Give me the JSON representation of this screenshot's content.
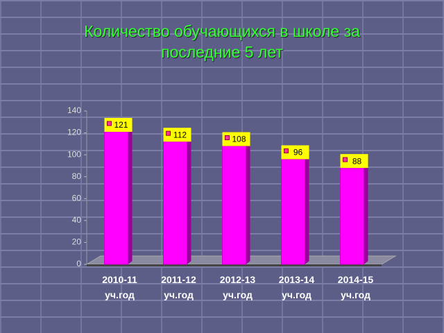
{
  "chart_data": {
    "type": "bar",
    "title": "Количество обучающихся в школе за последние 5 лет",
    "categories": [
      "2010-11 уч.год",
      "2011-12 уч.год",
      "2012-13 уч.год",
      "2013-14 уч.год",
      "2014-15 уч.год"
    ],
    "values": [
      121,
      112,
      108,
      96,
      88
    ],
    "color": "#ff00ff",
    "label_color": "#ffff00",
    "ylim": [
      0,
      140
    ],
    "yticks": [
      0,
      20,
      40,
      60,
      80,
      100,
      120,
      140
    ],
    "grid": false
  }
}
